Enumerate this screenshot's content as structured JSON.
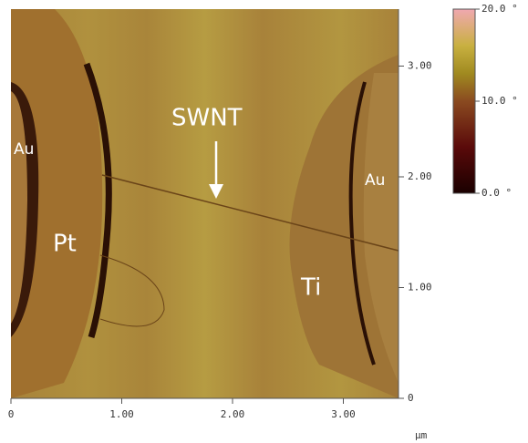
{
  "image": {
    "labels": {
      "au_left": "Au",
      "pt": "Pt",
      "swnt": "SWNT",
      "ti": "Ti",
      "au_right": "Au"
    }
  },
  "x_axis": {
    "ticks": [
      {
        "value": 0,
        "label": "0"
      },
      {
        "value": 1,
        "label": "1.00"
      },
      {
        "value": 2,
        "label": "2.00"
      },
      {
        "value": 3,
        "label": "3.00"
      }
    ],
    "unit": "μm"
  },
  "y_axis": {
    "ticks": [
      {
        "value": 0,
        "label": "0"
      },
      {
        "value": 1,
        "label": "1.00"
      },
      {
        "value": 2,
        "label": "2.00"
      },
      {
        "value": 3,
        "label": "3.00"
      }
    ]
  },
  "colorbar": {
    "ticks": [
      {
        "value": 20,
        "label": "20.0 °"
      },
      {
        "value": 10,
        "label": "10.0 °"
      },
      {
        "value": 0,
        "label": "0.0 °"
      }
    ]
  }
}
